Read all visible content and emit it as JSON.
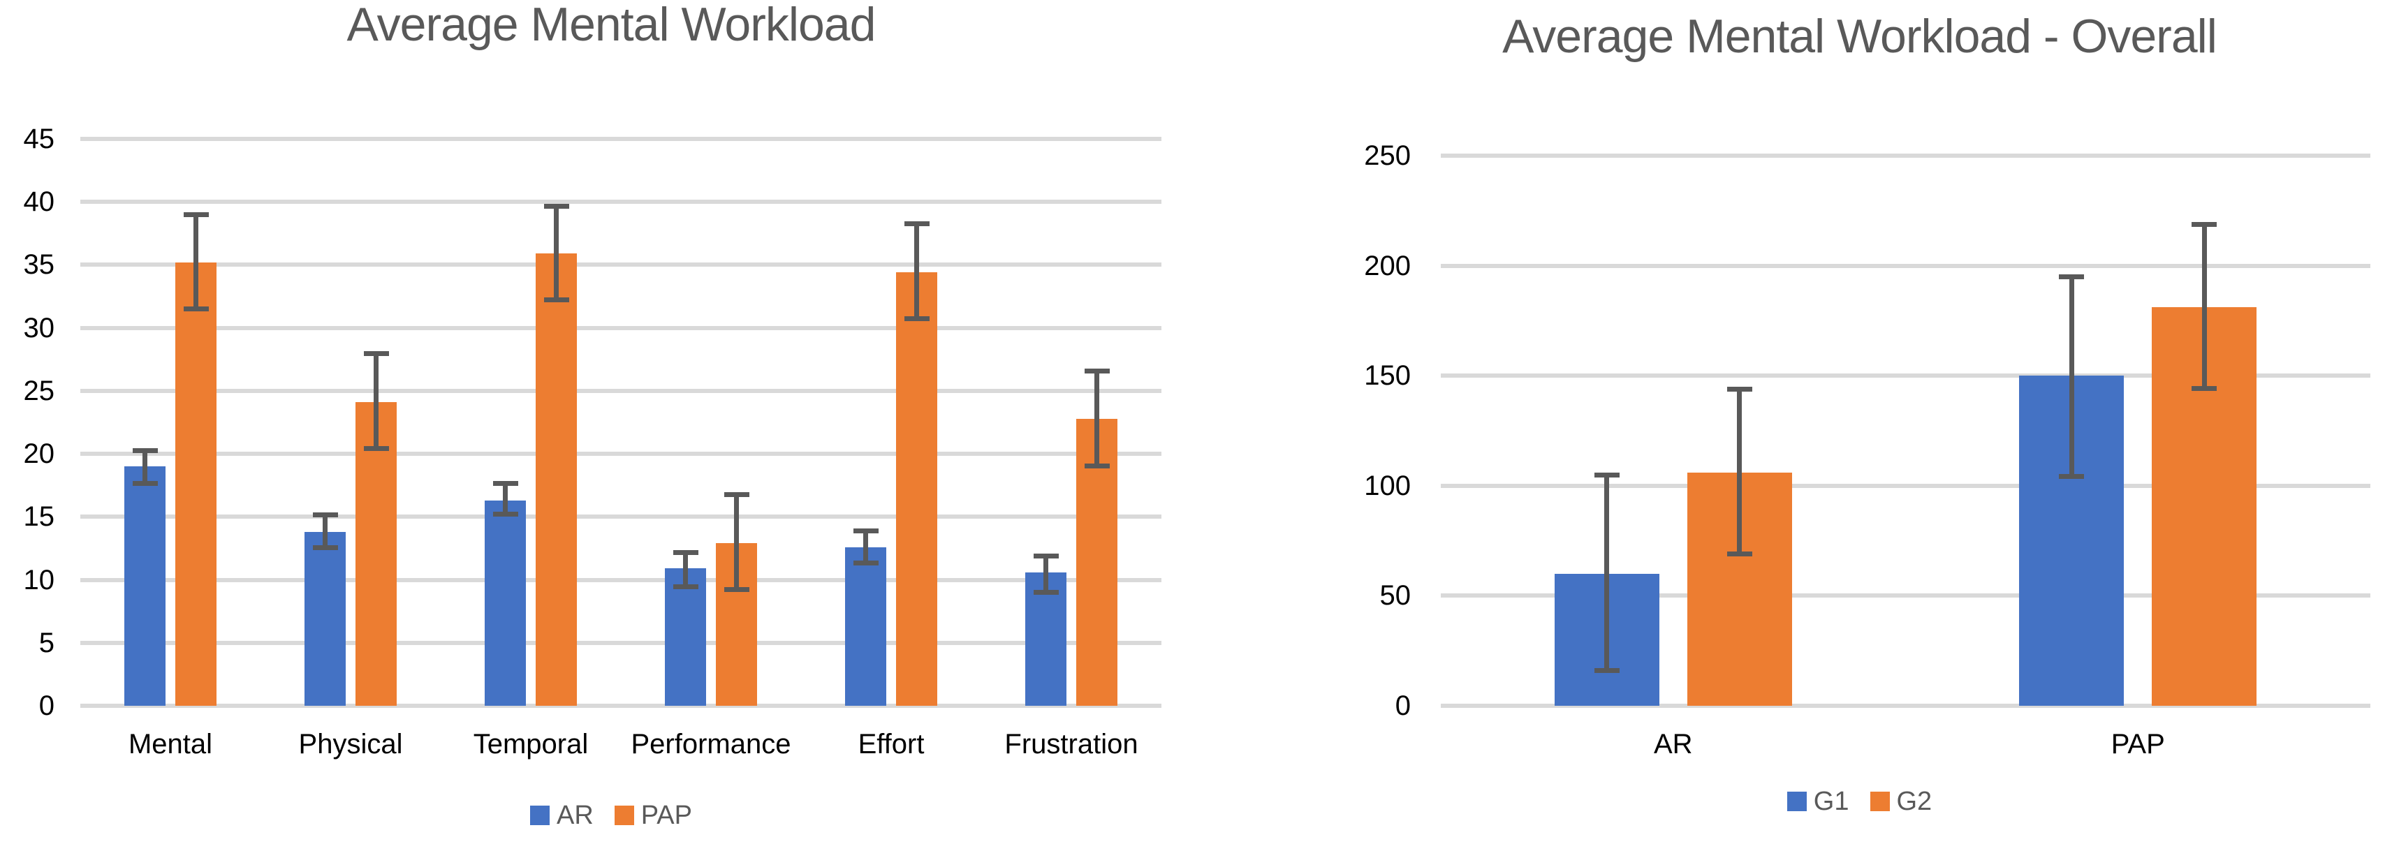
{
  "styles": {
    "background": "#FFFFFF",
    "text_color": "#595959",
    "gridline_color": "#D9D9D9",
    "error_bar_color": "#595959",
    "series_blue": "#4472C4",
    "series_orange": "#ED7D31"
  },
  "chart_data": [
    {
      "type": "bar",
      "title": "Average Mental Workload",
      "categories": [
        "Mental",
        "Physical",
        "Temporal",
        "Performance",
        "Effort",
        "Frustration"
      ],
      "series": [
        {
          "name": "AR",
          "color": "#4472C4",
          "values": [
            19.0,
            13.8,
            16.3,
            10.9,
            12.6,
            10.6
          ],
          "error_low": [
            17.6,
            12.5,
            15.2,
            9.4,
            11.3,
            9.0
          ],
          "error_high": [
            20.3,
            15.2,
            17.7,
            12.2,
            13.9,
            11.9
          ]
        },
        {
          "name": "PAP",
          "color": "#ED7D31",
          "values": [
            35.2,
            24.1,
            35.9,
            12.9,
            34.4,
            22.8
          ],
          "error_low": [
            31.5,
            20.4,
            32.2,
            9.2,
            30.7,
            19.0
          ],
          "error_high": [
            39.0,
            28.0,
            39.7,
            16.8,
            38.3,
            26.6
          ]
        }
      ],
      "ylim": [
        0,
        45
      ],
      "ytick_step": 5,
      "yticks": [
        0,
        5,
        10,
        15,
        20,
        25,
        30,
        35,
        40,
        45
      ],
      "grid": true,
      "error_bars": true,
      "legend_position": "bottom"
    },
    {
      "type": "bar",
      "title": "Average Mental Workload - Overall",
      "categories": [
        "AR",
        "PAP"
      ],
      "series": [
        {
          "name": "G1",
          "color": "#4472C4",
          "values": [
            60,
            150
          ],
          "error_low": [
            16,
            104
          ],
          "error_high": [
            105,
            195
          ]
        },
        {
          "name": "G2",
          "color": "#ED7D31",
          "values": [
            106,
            181
          ],
          "error_low": [
            69,
            144
          ],
          "error_high": [
            144,
            219
          ]
        }
      ],
      "ylim": [
        0,
        250
      ],
      "ytick_step": 50,
      "yticks": [
        0,
        50,
        100,
        150,
        200,
        250
      ],
      "grid": true,
      "error_bars": true,
      "legend_position": "bottom"
    }
  ]
}
